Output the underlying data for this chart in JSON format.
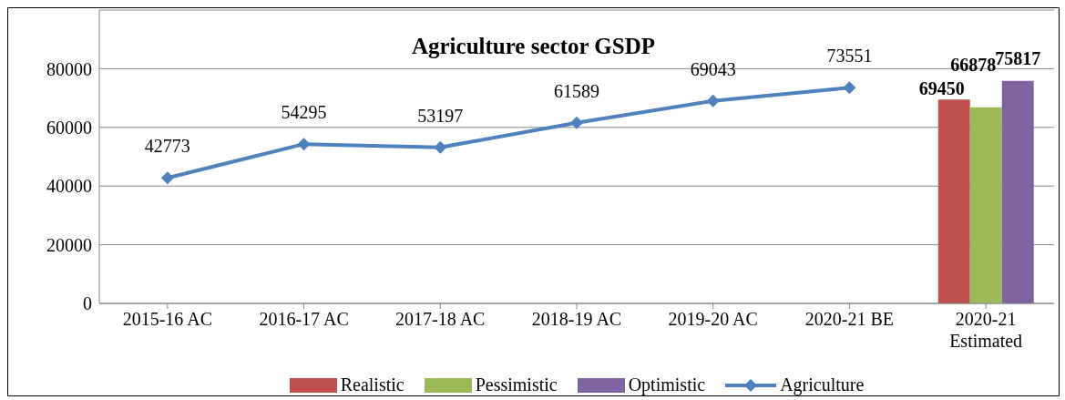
{
  "chart_data": {
    "type": "bar",
    "title": "Agriculture sector GSDP",
    "categories": [
      "2015-16 AC",
      "2016-17 AC",
      "2017-18 AC",
      "2018-19 AC",
      "2019-20 AC",
      "2020-21 BE",
      "2020-21 Estimated"
    ],
    "series": [
      {
        "name": "Realistic",
        "color": "#c0504d",
        "values": [
          null,
          null,
          null,
          null,
          null,
          null,
          69450
        ]
      },
      {
        "name": "Pessimistic",
        "color": "#9bbb59",
        "values": [
          null,
          null,
          null,
          null,
          null,
          null,
          66878
        ]
      },
      {
        "name": "Optimistic",
        "color": "#8064a2",
        "values": [
          null,
          null,
          null,
          null,
          null,
          null,
          75817
        ]
      },
      {
        "name": "Agriculture",
        "type": "line",
        "color": "#4f81bd",
        "values": [
          42773,
          54295,
          53197,
          61589,
          69043,
          73551,
          null
        ]
      }
    ],
    "ylim": [
      0,
      100000
    ],
    "yticks": [
      0,
      20000,
      40000,
      60000,
      80000
    ],
    "grid": "y",
    "legend": "bottom",
    "marker": "diamond",
    "line_style": "solid",
    "data_labels": true
  }
}
